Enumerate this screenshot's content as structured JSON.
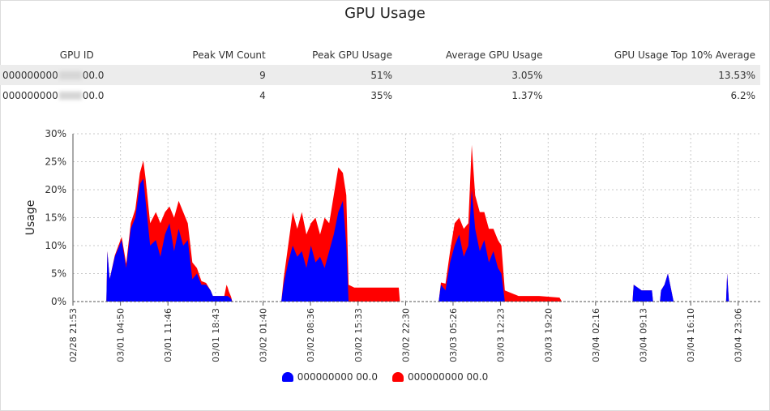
{
  "title": "GPU Usage",
  "table": {
    "headers": [
      "GPU ID",
      "Peak VM Count",
      "Peak GPU Usage",
      "Average GPU Usage",
      "GPU Usage Top 10% Average"
    ],
    "rows": [
      {
        "id_prefix": "000000000",
        "id_suffix": "00.0",
        "peak_vm": "9",
        "peak_gpu": "51%",
        "avg_gpu": "3.05%",
        "top10": "13.53%"
      },
      {
        "id_prefix": "000000000",
        "id_suffix": "00.0",
        "peak_vm": "4",
        "peak_gpu": "35%",
        "avg_gpu": "1.37%",
        "top10": "6.2%"
      }
    ]
  },
  "chart_data": {
    "type": "area",
    "ylabel": "Usage",
    "ylim": [
      0,
      30
    ],
    "yticks": [
      "0%",
      "5%",
      "10%",
      "15%",
      "20%",
      "25%",
      "30%"
    ],
    "xticks": [
      "02/28 21:53",
      "03/01 04:50",
      "03/01 11:46",
      "03/01 18:43",
      "03/02 01:40",
      "03/02 08:36",
      "03/02 15:33",
      "03/02 22:30",
      "03/03 05:26",
      "03/03 12:23",
      "03/03 19:20",
      "03/04 02:16",
      "03/04 09:13",
      "03/04 16:10",
      "03/04 23:06"
    ],
    "xlim": [
      "02/28 21:53",
      "03/05 02:20"
    ],
    "grid": true,
    "stacked": true,
    "legend": "bottom",
    "series": [
      {
        "name": "000000000 00.0",
        "color": "#0000ff",
        "points": [
          [
            "03/01 02:46",
            0
          ],
          [
            "03/01 02:55",
            9
          ],
          [
            "03/01 03:15",
            4
          ],
          [
            "03/01 04:00",
            8
          ],
          [
            "03/01 05:00",
            11
          ],
          [
            "03/01 05:40",
            6
          ],
          [
            "03/01 06:20",
            13
          ],
          [
            "03/01 07:00",
            15
          ],
          [
            "03/01 07:40",
            21
          ],
          [
            "03/01 08:10",
            22
          ],
          [
            "03/01 08:30",
            18
          ],
          [
            "03/01 09:10",
            10
          ],
          [
            "03/01 10:00",
            11
          ],
          [
            "03/01 10:40",
            8
          ],
          [
            "03/01 11:20",
            12
          ],
          [
            "03/01 12:00",
            14
          ],
          [
            "03/01 12:40",
            9
          ],
          [
            "03/01 13:20",
            13
          ],
          [
            "03/01 14:00",
            10
          ],
          [
            "03/01 14:40",
            11
          ],
          [
            "03/01 15:20",
            4
          ],
          [
            "03/01 16:00",
            5
          ],
          [
            "03/01 16:40",
            3
          ],
          [
            "03/01 17:20",
            3
          ],
          [
            "03/01 18:00",
            2
          ],
          [
            "03/01 18:20",
            1
          ],
          [
            "03/01 20:30",
            1
          ],
          [
            "03/01 21:00",
            0.5
          ],
          [
            "03/01 21:10",
            0
          ],
          [
            "03/02 04:20",
            0
          ],
          [
            "03/02 04:40",
            3
          ],
          [
            "03/02 05:20",
            7
          ],
          [
            "03/02 06:00",
            10
          ],
          [
            "03/02 06:40",
            8
          ],
          [
            "03/02 07:20",
            9
          ],
          [
            "03/02 08:00",
            6
          ],
          [
            "03/02 08:40",
            10
          ],
          [
            "03/02 09:20",
            7
          ],
          [
            "03/02 10:00",
            8
          ],
          [
            "03/02 10:40",
            6
          ],
          [
            "03/02 11:20",
            9
          ],
          [
            "03/02 12:00",
            12
          ],
          [
            "03/02 12:40",
            16
          ],
          [
            "03/02 13:20",
            18
          ],
          [
            "03/02 13:50",
            10
          ],
          [
            "03/02 14:10",
            0
          ],
          [
            "03/03 03:20",
            0
          ],
          [
            "03/03 03:40",
            3
          ],
          [
            "03/03 04:20",
            2
          ],
          [
            "03/03 05:00",
            7
          ],
          [
            "03/03 05:40",
            10
          ],
          [
            "03/03 06:20",
            12
          ],
          [
            "03/03 07:00",
            8
          ],
          [
            "03/03 07:40",
            10
          ],
          [
            "03/03 08:10",
            20
          ],
          [
            "03/03 08:40",
            13
          ],
          [
            "03/03 09:20",
            9
          ],
          [
            "03/03 10:00",
            11
          ],
          [
            "03/03 10:40",
            7
          ],
          [
            "03/03 11:20",
            9
          ],
          [
            "03/03 12:00",
            6
          ],
          [
            "03/03 12:30",
            5
          ],
          [
            "03/03 13:00",
            0
          ],
          [
            "03/04 07:40",
            0
          ],
          [
            "03/04 07:50",
            3
          ],
          [
            "03/04 09:00",
            2
          ],
          [
            "03/04 10:30",
            2
          ],
          [
            "03/04 10:40",
            0
          ],
          [
            "03/04 11:40",
            0
          ],
          [
            "03/04 11:50",
            2
          ],
          [
            "03/04 12:20",
            3
          ],
          [
            "03/04 12:50",
            5
          ],
          [
            "03/04 13:20",
            2
          ],
          [
            "03/04 13:40",
            0
          ],
          [
            "03/04 21:20",
            0
          ],
          [
            "03/04 21:30",
            5
          ],
          [
            "03/04 21:45",
            0
          ]
        ]
      },
      {
        "name": "000000000 00.0",
        "color": "#ff0000",
        "points": [
          [
            "03/01 02:46",
            0
          ],
          [
            "03/01 03:15",
            0
          ],
          [
            "03/01 06:20",
            1
          ],
          [
            "03/01 07:40",
            2
          ],
          [
            "03/01 08:30",
            4
          ],
          [
            "03/01 09:10",
            4
          ],
          [
            "03/01 10:00",
            5
          ],
          [
            "03/01 10:40",
            6
          ],
          [
            "03/01 11:20",
            4
          ],
          [
            "03/01 12:00",
            3
          ],
          [
            "03/01 12:40",
            6
          ],
          [
            "03/01 13:20",
            5
          ],
          [
            "03/01 14:00",
            6
          ],
          [
            "03/01 14:40",
            3
          ],
          [
            "03/01 15:20",
            3
          ],
          [
            "03/01 16:00",
            1
          ],
          [
            "03/01 18:00",
            0
          ],
          [
            "03/01 20:00",
            0
          ],
          [
            "03/01 20:20",
            2
          ],
          [
            "03/01 20:40",
            1
          ],
          [
            "03/01 21:10",
            0
          ],
          [
            "03/02 04:20",
            0
          ],
          [
            "03/02 05:20",
            3
          ],
          [
            "03/02 06:00",
            6
          ],
          [
            "03/02 06:40",
            5
          ],
          [
            "03/02 07:20",
            7
          ],
          [
            "03/02 08:00",
            6
          ],
          [
            "03/02 08:40",
            4
          ],
          [
            "03/02 09:20",
            8
          ],
          [
            "03/02 10:00",
            4
          ],
          [
            "03/02 10:40",
            9
          ],
          [
            "03/02 11:20",
            5
          ],
          [
            "03/02 12:00",
            7
          ],
          [
            "03/02 12:40",
            8
          ],
          [
            "03/02 13:20",
            5
          ],
          [
            "03/02 13:50",
            9
          ],
          [
            "03/02 14:10",
            3
          ],
          [
            "03/02 15:00",
            2.5
          ],
          [
            "03/02 17:00",
            2.5
          ],
          [
            "03/02 19:00",
            2.5
          ],
          [
            "03/02 21:30",
            2.5
          ],
          [
            "03/02 21:40",
            0
          ],
          [
            "03/03 03:20",
            0
          ],
          [
            "03/03 05:00",
            2
          ],
          [
            "03/03 05:40",
            4
          ],
          [
            "03/03 06:20",
            3
          ],
          [
            "03/03 07:00",
            5
          ],
          [
            "03/03 07:40",
            4
          ],
          [
            "03/03 08:10",
            8
          ],
          [
            "03/03 08:40",
            6
          ],
          [
            "03/03 09:20",
            7
          ],
          [
            "03/03 10:00",
            5
          ],
          [
            "03/03 10:40",
            6
          ],
          [
            "03/03 11:20",
            4
          ],
          [
            "03/03 12:00",
            5
          ],
          [
            "03/03 12:30",
            5
          ],
          [
            "03/03 13:00",
            2
          ],
          [
            "03/03 15:00",
            1
          ],
          [
            "03/03 18:00",
            1
          ],
          [
            "03/03 21:00",
            0.7
          ],
          [
            "03/03 21:20",
            0
          ]
        ]
      }
    ]
  }
}
